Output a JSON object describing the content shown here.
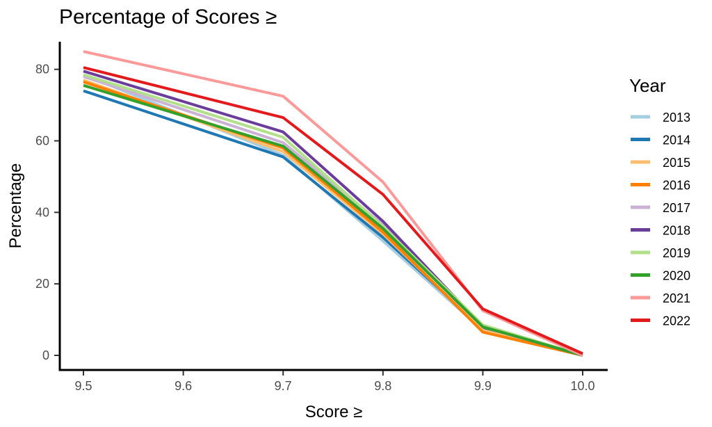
{
  "chart_data": {
    "type": "line",
    "title": "Percentage of Scores ≥",
    "xlabel": "Score ≥",
    "ylabel": "Percentage",
    "x": [
      9.5,
      9.7,
      9.8,
      9.9,
      10.0
    ],
    "xticks": [
      9.5,
      9.6,
      9.7,
      9.8,
      9.9,
      10.0
    ],
    "xtick_labels": [
      "9.5",
      "9.6",
      "9.7",
      "9.8",
      "9.9",
      "10.0"
    ],
    "yticks": [
      0,
      20,
      40,
      60,
      80
    ],
    "xlim": [
      9.5,
      10.0
    ],
    "ylim": [
      0,
      85
    ],
    "grid": false,
    "legend": {
      "title": "Year",
      "position": "right"
    },
    "series": [
      {
        "name": "2013",
        "color": "#a6cee3",
        "values": [
          78.5,
          56,
          32,
          7,
          0
        ]
      },
      {
        "name": "2014",
        "color": "#1f78b4",
        "values": [
          74,
          55.5,
          33,
          7.5,
          0
        ]
      },
      {
        "name": "2015",
        "color": "#fdbf6f",
        "values": [
          77,
          57,
          34,
          7,
          0
        ]
      },
      {
        "name": "2016",
        "color": "#ff7f00",
        "values": [
          76.5,
          58,
          34.5,
          6.5,
          0
        ]
      },
      {
        "name": "2017",
        "color": "#cab2d6",
        "values": [
          78,
          59.5,
          36.5,
          8,
          0
        ]
      },
      {
        "name": "2018",
        "color": "#6a3d9a",
        "values": [
          79.5,
          62.5,
          37.5,
          8,
          0
        ]
      },
      {
        "name": "2019",
        "color": "#b2df8a",
        "values": [
          78.5,
          61,
          36,
          8.5,
          0
        ]
      },
      {
        "name": "2020",
        "color": "#33a02c",
        "values": [
          75.5,
          58.5,
          35.5,
          8,
          0
        ]
      },
      {
        "name": "2021",
        "color": "#fb9a99",
        "values": [
          85,
          72.5,
          48.5,
          12.5,
          0
        ]
      },
      {
        "name": "2022",
        "color": "#e31a1c",
        "values": [
          80.5,
          66.5,
          45,
          13,
          0.5
        ]
      }
    ]
  }
}
